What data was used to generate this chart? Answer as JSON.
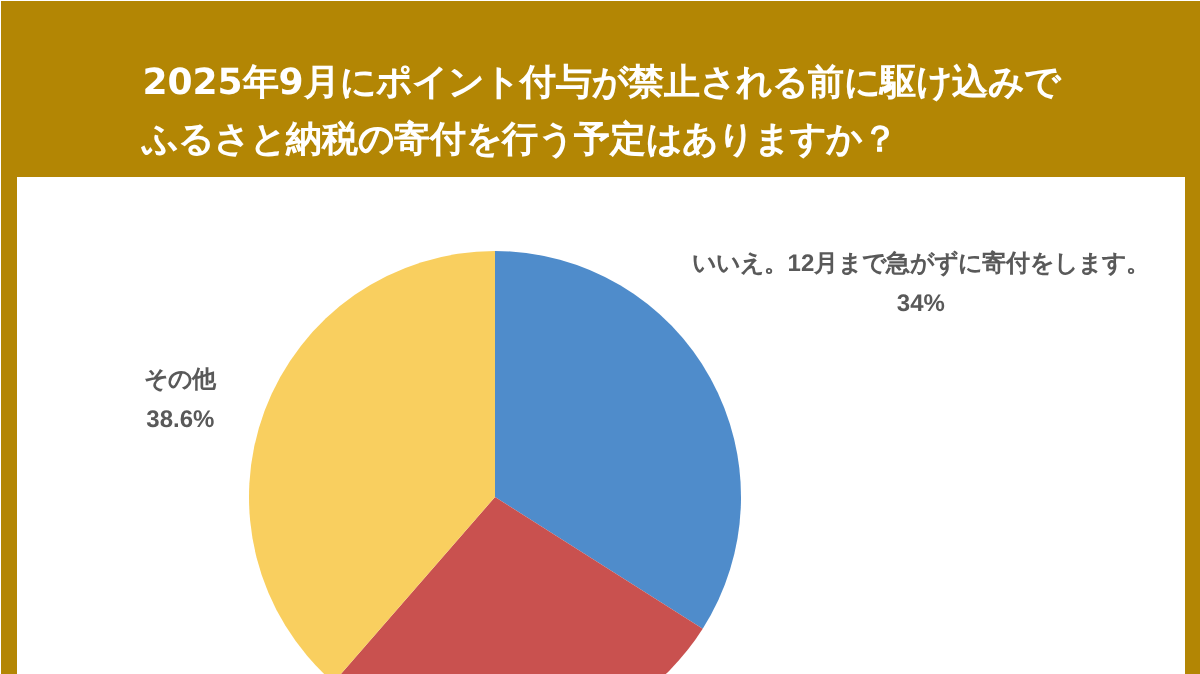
{
  "chart_data": {
    "type": "pie",
    "title": "2025年9月にポイント付与が禁止される前に駆け込みでふるさと納税の寄付を行う予定はありますか？",
    "categories": [
      "いいえ。12月まで急がずに寄付をします。",
      null,
      "その他"
    ],
    "values": [
      34,
      27.4,
      38.6
    ],
    "colors": [
      "#4f8ccb",
      "#c9514f",
      "#f9cf5f"
    ],
    "value_labels": [
      "34%",
      null,
      "38.6%"
    ]
  }
}
